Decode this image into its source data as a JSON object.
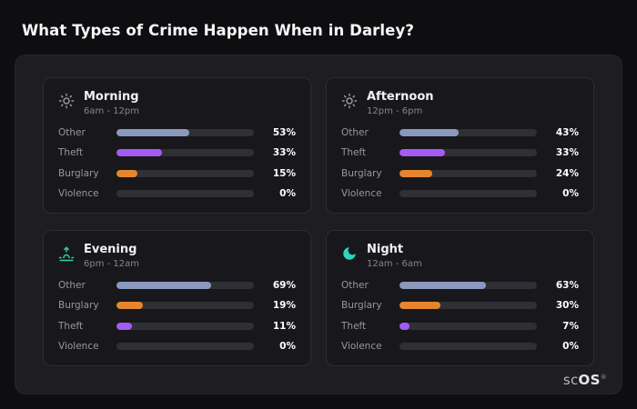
{
  "page": {
    "title": "What Types of Crime Happen When in Darley?"
  },
  "colors": {
    "background": "#0e0e10",
    "panel": "#1d1d22",
    "card": "#18181c",
    "track": "#2f2f36",
    "other": "#8a99bd",
    "theft": "#a35bf2",
    "burglary": "#e5862e",
    "violence": "#6b6b73",
    "sun_icon": "#9a9aa2",
    "sunset_icon": "#31d0a0",
    "moon_icon": "#2dd4bf"
  },
  "cards": [
    {
      "id": "morning",
      "title": "Morning",
      "subtitle": "6am - 12pm",
      "icon": "sun-icon",
      "icon_color": "#9a9aa2",
      "rows": [
        {
          "label": "Other",
          "value": 53,
          "display": "53%",
          "color": "#8a99bd"
        },
        {
          "label": "Theft",
          "value": 33,
          "display": "33%",
          "color": "#a35bf2"
        },
        {
          "label": "Burglary",
          "value": 15,
          "display": "15%",
          "color": "#e5862e"
        },
        {
          "label": "Violence",
          "value": 0,
          "display": "0%",
          "color": "#6b6b73"
        }
      ]
    },
    {
      "id": "afternoon",
      "title": "Afternoon",
      "subtitle": "12pm - 6pm",
      "icon": "sun-icon",
      "icon_color": "#9a9aa2",
      "rows": [
        {
          "label": "Other",
          "value": 43,
          "display": "43%",
          "color": "#8a99bd"
        },
        {
          "label": "Theft",
          "value": 33,
          "display": "33%",
          "color": "#a35bf2"
        },
        {
          "label": "Burglary",
          "value": 24,
          "display": "24%",
          "color": "#e5862e"
        },
        {
          "label": "Violence",
          "value": 0,
          "display": "0%",
          "color": "#6b6b73"
        }
      ]
    },
    {
      "id": "evening",
      "title": "Evening",
      "subtitle": "6pm - 12am",
      "icon": "sunset-icon",
      "icon_color": "#31d0a0",
      "rows": [
        {
          "label": "Other",
          "value": 69,
          "display": "69%",
          "color": "#8a99bd"
        },
        {
          "label": "Burglary",
          "value": 19,
          "display": "19%",
          "color": "#e5862e"
        },
        {
          "label": "Theft",
          "value": 11,
          "display": "11%",
          "color": "#a35bf2"
        },
        {
          "label": "Violence",
          "value": 0,
          "display": "0%",
          "color": "#6b6b73"
        }
      ]
    },
    {
      "id": "night",
      "title": "Night",
      "subtitle": "12am - 6am",
      "icon": "moon-icon",
      "icon_color": "#2dd4bf",
      "rows": [
        {
          "label": "Other",
          "value": 63,
          "display": "63%",
          "color": "#8a99bd"
        },
        {
          "label": "Burglary",
          "value": 30,
          "display": "30%",
          "color": "#e5862e"
        },
        {
          "label": "Theft",
          "value": 7,
          "display": "7%",
          "color": "#a35bf2"
        },
        {
          "label": "Violence",
          "value": 0,
          "display": "0%",
          "color": "#6b6b73"
        }
      ]
    }
  ],
  "chart_data": [
    {
      "type": "bar",
      "orientation": "horizontal",
      "title": "Morning",
      "subtitle": "6am - 12pm",
      "categories": [
        "Other",
        "Theft",
        "Burglary",
        "Violence"
      ],
      "values": [
        53,
        33,
        15,
        0
      ],
      "unit": "%",
      "xlim": [
        0,
        100
      ],
      "grid": false,
      "legend": "none"
    },
    {
      "type": "bar",
      "orientation": "horizontal",
      "title": "Afternoon",
      "subtitle": "12pm - 6pm",
      "categories": [
        "Other",
        "Theft",
        "Burglary",
        "Violence"
      ],
      "values": [
        43,
        33,
        24,
        0
      ],
      "unit": "%",
      "xlim": [
        0,
        100
      ],
      "grid": false,
      "legend": "none"
    },
    {
      "type": "bar",
      "orientation": "horizontal",
      "title": "Evening",
      "subtitle": "6pm - 12am",
      "categories": [
        "Other",
        "Burglary",
        "Theft",
        "Violence"
      ],
      "values": [
        69,
        19,
        11,
        0
      ],
      "unit": "%",
      "xlim": [
        0,
        100
      ],
      "grid": false,
      "legend": "none"
    },
    {
      "type": "bar",
      "orientation": "horizontal",
      "title": "Night",
      "subtitle": "12am - 6am",
      "categories": [
        "Other",
        "Burglary",
        "Theft",
        "Violence"
      ],
      "values": [
        63,
        30,
        7,
        0
      ],
      "unit": "%",
      "xlim": [
        0,
        100
      ],
      "grid": false,
      "legend": "none"
    }
  ],
  "footer": {
    "logo_light": "sc",
    "logo_bold": "OS",
    "reg": "®"
  }
}
